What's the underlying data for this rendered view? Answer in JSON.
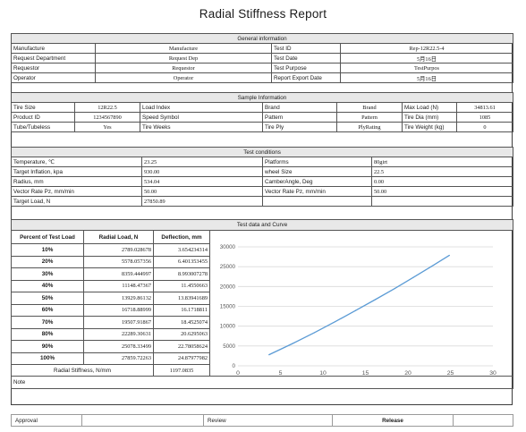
{
  "title": "Radial Stiffness Report",
  "general": {
    "header": "General information",
    "rows": [
      {
        "l1": "Manufacture",
        "v1": "Manufacture",
        "l2": "Test ID",
        "v2": "Rep-12R22.5-4"
      },
      {
        "l1": "Request Department",
        "v1": "Request Dep",
        "l2": "Test Date",
        "v2": "5月16日"
      },
      {
        "l1": "Requestor",
        "v1": "Requestor",
        "l2": "Test Purpose",
        "v2": "TestPurpos"
      },
      {
        "l1": "Operator",
        "v1": "Operator",
        "l2": "Report Export Date",
        "v2": "5月16日"
      }
    ]
  },
  "sample": {
    "header": "Sample Information",
    "rows": [
      {
        "l1": "Tire Size",
        "v1": "12R22.5",
        "l2": "Load Index",
        "v2": "",
        "l3": "Brand",
        "v3": "Brand",
        "l4": "Max Load (N)",
        "v4": "34813.61"
      },
      {
        "l1": "Product ID",
        "v1": "1234567890",
        "l2": "Speed Symbol",
        "v2": "",
        "l3": "Pattern",
        "v3": "Pattern",
        "l4": "Tire Dia (mm)",
        "v4": "1085"
      },
      {
        "l1": "Tube/Tubeless",
        "v1": "Yes",
        "l2": "Tire Weeks",
        "v2": "",
        "l3": "Tire Ply",
        "v3": "PlyRating",
        "l4": "Tire Weight (kg)",
        "v4": "0"
      }
    ]
  },
  "conditions": {
    "header": "Test conditions",
    "rows": [
      {
        "l1": "Temperature, ℃",
        "v1": "23.25",
        "l2": "Platforms",
        "v2": "80girt"
      },
      {
        "l1": "Target Inflation, kpa",
        "v1": "930.00",
        "l2": "wheel Size",
        "v2": "22.5"
      },
      {
        "l1": "Radius, mm",
        "v1": "534.04",
        "l2": "CamberAngle, Deg",
        "v2": "0.00"
      },
      {
        "l1": "Vector Rate Pz, mm/min",
        "v1": "50.00",
        "l2": "Vector Rate Pz, mm/min",
        "v2": "50.00"
      },
      {
        "l1": "Target Load, N",
        "v1": "27850.89",
        "l2": "",
        "v2": ""
      }
    ]
  },
  "testdata": {
    "header": "Test data and Curve",
    "col_pct": "Percent of Test Load",
    "col_load": "Radial Load, N",
    "col_def": "Deflection, mm",
    "rows": [
      {
        "pct": "10%",
        "load": "2789.028678",
        "def": "3.654234314"
      },
      {
        "pct": "20%",
        "load": "5578.057356",
        "def": "6.401353455"
      },
      {
        "pct": "30%",
        "load": "8359.444997",
        "def": "8.993007278"
      },
      {
        "pct": "40%",
        "load": "11148.47367",
        "def": "11.4550663"
      },
      {
        "pct": "50%",
        "load": "13929.86132",
        "def": "13.83941689"
      },
      {
        "pct": "60%",
        "load": "16718.88999",
        "def": "16.1718811"
      },
      {
        "pct": "70%",
        "load": "19507.91867",
        "def": "18.4525074"
      },
      {
        "pct": "80%",
        "load": "22289.30631",
        "def": "20.6295063"
      },
      {
        "pct": "90%",
        "load": "25078.33499",
        "def": "22.78058624"
      },
      {
        "pct": "100%",
        "load": "27859.72263",
        "def": "24.87977982"
      }
    ],
    "stiffness_label": "Radial Stiffness, N/mm",
    "stiffness_value": "1197.0835"
  },
  "note_label": "Note",
  "footer": {
    "approval": "Approval",
    "review": "Review",
    "release": "Release"
  },
  "colors": {
    "line": "#5b9bd5",
    "grid": "#d9d9d9"
  },
  "chart_data": {
    "type": "line",
    "x": [
      3.654234314,
      6.401353455,
      8.993007278,
      11.4550663,
      13.83941689,
      16.1718811,
      18.4525074,
      20.6295063,
      22.78058624,
      24.87977982
    ],
    "series": [
      {
        "values": [
          2789.028678,
          5578.057356,
          8359.444997,
          11148.47367,
          13929.86132,
          16718.88999,
          19507.91867,
          22289.30631,
          25078.33499,
          27859.72263
        ]
      }
    ],
    "xlim": [
      0,
      30
    ],
    "ylim": [
      0,
      30000
    ],
    "xticks": [
      "0",
      "5",
      "10",
      "15",
      "20",
      "25",
      "30"
    ],
    "yticks": [
      "0",
      "5000",
      "10000",
      "15000",
      "20000",
      "25000",
      "30000"
    ],
    "grid": true
  }
}
